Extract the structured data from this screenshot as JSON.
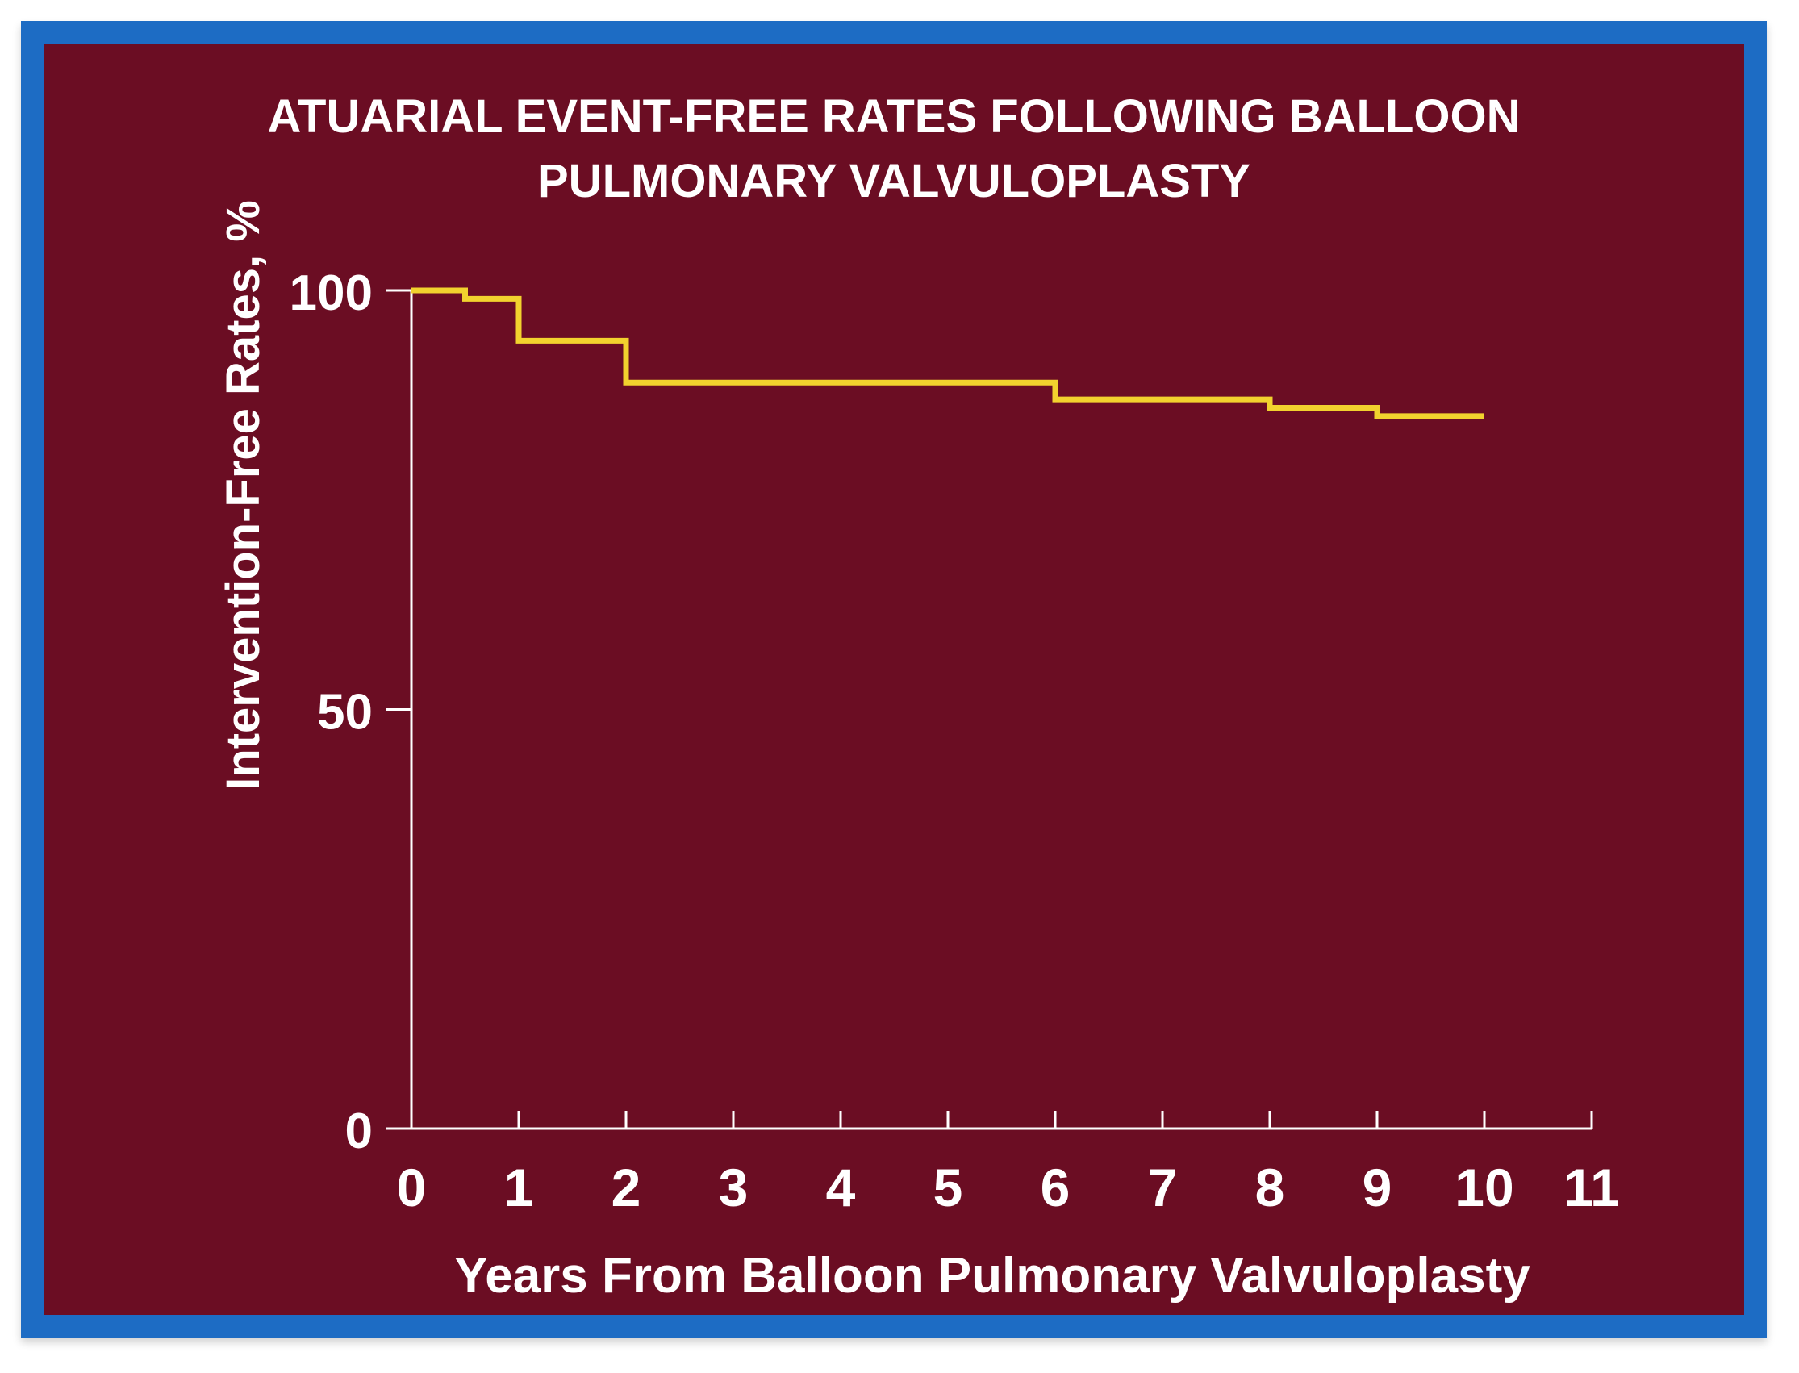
{
  "colors": {
    "frame": "#1d6cc4",
    "background": "#6b0d23",
    "axis": "#ffffff",
    "curve": "#f2d22e",
    "text": "#ffffff"
  },
  "chart_data": {
    "type": "line",
    "step": true,
    "title_lines": [
      "ATUARIAL EVENT-FREE RATES FOLLOWING BALLOON",
      "PULMONARY VALVULOPLASTY"
    ],
    "xlabel": "Years From Balloon Pulmonary Valvuloplasty",
    "ylabel": "Intervention-Free Rates, %",
    "xlim": [
      0,
      11
    ],
    "ylim": [
      0,
      100
    ],
    "xticks": [
      0,
      1,
      2,
      3,
      4,
      5,
      6,
      7,
      8,
      9,
      10,
      11
    ],
    "xtick_labels": [
      "0",
      "1",
      "2",
      "3",
      "4",
      "5",
      "6",
      "7",
      "8",
      "9",
      "10",
      "11"
    ],
    "yticks": [
      0,
      50,
      100
    ],
    "ytick_labels": [
      "0",
      "50",
      "100"
    ],
    "grid": false,
    "legend": "none",
    "series": [
      {
        "name": "Intervention-free rate",
        "x": [
          0,
          0.5,
          1.0,
          2.0,
          6.0,
          8.0,
          9.0,
          10.0
        ],
        "y": [
          100,
          99,
          94,
          89,
          87,
          86,
          85,
          85
        ]
      }
    ]
  }
}
